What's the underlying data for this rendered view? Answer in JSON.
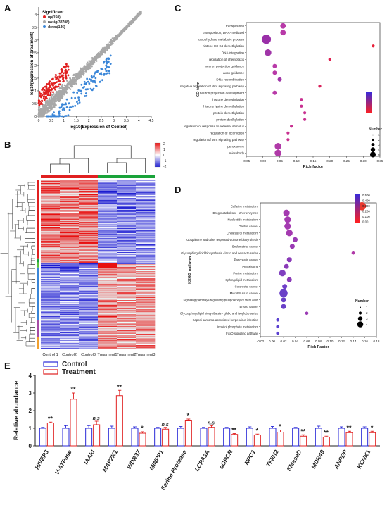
{
  "letters": {
    "a": "A",
    "b": "B",
    "c": "C",
    "d": "D",
    "e": "E"
  },
  "panel_a": {
    "xlabel": "log10(Expression of Control)",
    "ylabel": "log10(Expression of Treatment)",
    "xticks": [
      "0",
      "0.5",
      "1",
      "1.5",
      "2",
      "2.5",
      "3",
      "3.5",
      "4",
      "4.5"
    ],
    "yticks": [
      "0",
      "0.5",
      "1",
      "1.5",
      "2",
      "2.5",
      "3",
      "3.5",
      "4"
    ],
    "legend_title": "Significant",
    "legend": [
      {
        "label": "up(150)",
        "color": "#e02020"
      },
      {
        "label": "nosig(38708)",
        "color": "#a8a8a8"
      },
      {
        "label": "down(146)",
        "color": "#3a86d8"
      }
    ]
  },
  "panel_b": {
    "columns": [
      "Control 1",
      "Control2",
      "Control3",
      "Treatment1",
      "Treatment2",
      "Treatment3"
    ],
    "group_colors": {
      "control": "#e02020",
      "treatment": "#1aa33a"
    },
    "scale_ticks": [
      "2",
      "1",
      "0",
      "-1",
      "-2"
    ],
    "row_group_colors": [
      "#e02020",
      "#1aa33a",
      "#5bc23f",
      "#3a86d8",
      "#a64ca6",
      "#f0a030"
    ]
  },
  "panel_c": {
    "ylabel": "GO term",
    "xlabel": "Rich factor",
    "xticks": [
      "-0.05",
      "0.00",
      "0.05",
      "0.10",
      "0.15",
      "0.20",
      "0.25",
      "0.30",
      "0.35"
    ],
    "legend_title": "Number",
    "legend_sizes": [
      "1",
      "2",
      "3",
      "4",
      "6"
    ],
    "terms": [
      "transposition",
      "transposition, DNA-mediated",
      "carbohydrate metabolic process",
      "histone H3-K4 demethylation",
      "DNA integration",
      "regulation of chemotaxis",
      "neuron projection guidance",
      "axon guidance",
      "DNA recombination",
      "negative regulation of Wnt signaling pathway",
      "neuron projection development",
      "histone demethylation",
      "histone lysine demethylation",
      "protein demethylation",
      "protein dealkylation",
      "regulation of response to external stimulus",
      "regulation of locomotion",
      "regulation of Wnt signaling pathway",
      "peroxisome",
      "microbody"
    ]
  },
  "panel_d": {
    "ylabel": "KEGG pathway",
    "xlabel": "Rich Factor",
    "xticks": [
      "-0.02",
      "0.00",
      "0.02",
      "0.04",
      "0.06",
      "0.08",
      "0.10",
      "0.12",
      "0.14",
      "0.16",
      "0.18"
    ],
    "legend_title": "Number",
    "legend_sizes": [
      "1",
      "2",
      "3",
      "4"
    ],
    "color_ticks": [
      "0.500",
      "0.400",
      "0.300",
      "0.200",
      "0.100",
      "0.00"
    ],
    "pathways": [
      "Caffeine metabolism",
      "Drug metabolism - other enzymes",
      "Nucleotide metabolism",
      "Gastric cancer",
      "Cholesterol metabolism",
      "Ubiquinone and other terpenoid-quinone biosynthesis",
      "Endometrial cancer",
      "Glycosphingolipid biosynthesis - lacto and neolacto series",
      "Pancreatic cancer",
      "Peroxisome",
      "Purine metabolism",
      "Sphingolipid metabolism",
      "Colorectal cancer",
      "MicroRNAs in cancer",
      "Signaling pathways regulating pluripotency of stem cells",
      "Breast cancer",
      "Glycosphingolipid biosynthesis - globo and isoglobo series",
      "Kaposi sarcoma-associated herpesvirus infection",
      "Inositol phosphate metabolism",
      "FoxO signaling pathway"
    ]
  },
  "chart_data": [
    {
      "type": "scatter",
      "xlabel": "Rich factor",
      "ylabel": "GO term",
      "xlim": [
        -0.05,
        0.35
      ],
      "categories": [
        "transposition",
        "transposition, DNA-mediated",
        "carbohydrate metabolic process",
        "histone H3-K4 demethylation",
        "DNA integration",
        "regulation of chemotaxis",
        "neuron projection guidance",
        "axon guidance",
        "DNA recombination",
        "negative regulation of Wnt signaling pathway",
        "neuron projection development",
        "histone demethylation",
        "histone lysine demethylation",
        "protein demethylation",
        "protein dealkylation",
        "regulation of response to external stimulus",
        "regulation of locomotion",
        "regulation of Wnt signaling pathway",
        "peroxisome",
        "microbody"
      ],
      "x": [
        0.06,
        0.06,
        0.01,
        0.33,
        0.015,
        0.2,
        0.035,
        0.035,
        0.05,
        0.17,
        0.035,
        0.115,
        0.115,
        0.125,
        0.125,
        0.085,
        0.075,
        0.075,
        0.045,
        0.045
      ],
      "sizes": [
        3,
        3,
        6,
        1,
        4,
        1,
        2,
        2,
        2,
        1,
        2,
        1,
        1,
        1,
        1,
        1,
        1,
        1,
        4,
        4
      ]
    },
    {
      "type": "scatter",
      "xlabel": "Rich Factor",
      "ylabel": "KEGG pathway",
      "xlim": [
        -0.02,
        0.18
      ],
      "categories": [
        "Caffeine metabolism",
        "Drug metabolism - other enzymes",
        "Nucleotide metabolism",
        "Gastric cancer",
        "Cholesterol metabolism",
        "Ubiquinone and other terpenoid-quinone biosynthesis",
        "Endometrial cancer",
        "Glycosphingolipid biosynthesis - lacto and neolacto series",
        "Pancreatic cancer",
        "Peroxisome",
        "Purine metabolism",
        "Sphingolipid metabolism",
        "Colorectal cancer",
        "MicroRNAs in cancer",
        "Signaling pathways regulating pluripotency of stem cells",
        "Breast cancer",
        "Glycosphingolipid biosynthesis - globo and isoglobo series",
        "Kaposi sarcoma-associated herpesvirus infection",
        "Inositol phosphate metabolism",
        "FoxO signaling pathway"
      ],
      "x": [
        0.155,
        0.025,
        0.027,
        0.027,
        0.03,
        0.04,
        0.035,
        0.14,
        0.03,
        0.025,
        0.018,
        0.03,
        0.022,
        0.02,
        0.02,
        0.02,
        0.06,
        0.01,
        0.01,
        0.01
      ],
      "sizes": [
        4,
        3,
        3,
        3,
        3,
        2,
        2,
        1,
        2,
        2,
        3,
        2,
        2,
        4,
        2,
        2,
        1,
        1,
        1,
        1
      ]
    },
    {
      "type": "bar",
      "ylabel": "Relative abundance",
      "ylim": [
        0,
        4
      ],
      "yticks": [
        "0",
        "1",
        "2",
        "3",
        "4"
      ],
      "categories": [
        "HIVEP3",
        "V-ATPase",
        "IAAld",
        "MAP2K1",
        "WDR37",
        "MINPP1",
        "Serine Protease",
        "LCPA3A",
        "aGPCR",
        "NPC1",
        "TFIIH2",
        "SMaseD",
        "MDR49",
        "ANPEP",
        "KCNK1"
      ],
      "series": [
        {
          "name": "Control",
          "color": "#2a2ad8",
          "values": [
            1,
            1,
            1,
            1,
            1,
            1,
            1,
            1,
            1,
            1,
            1,
            1,
            1,
            1,
            1
          ],
          "errors": [
            0.05,
            0.15,
            0.15,
            0.12,
            0.08,
            0.05,
            0.1,
            0.05,
            0.05,
            0.08,
            0.1,
            0.05,
            0.12,
            0.08,
            0.08
          ]
        },
        {
          "name": "Treatment",
          "color": "#e02020",
          "values": [
            1.3,
            2.65,
            1.2,
            2.85,
            0.72,
            0.95,
            1.42,
            1.05,
            0.65,
            0.62,
            0.78,
            0.55,
            0.5,
            0.75,
            0.75
          ],
          "errors": [
            0.05,
            0.35,
            0.2,
            0.3,
            0.08,
            0.1,
            0.1,
            0.1,
            0.05,
            0.05,
            0.12,
            0.08,
            0.05,
            0.08,
            0.08
          ]
        }
      ],
      "significance": [
        "**",
        "**",
        "n.s",
        "**",
        "*",
        "n.s",
        "*",
        "n.s",
        "**",
        "*",
        "*",
        "**",
        "**",
        "**",
        "*"
      ]
    }
  ]
}
